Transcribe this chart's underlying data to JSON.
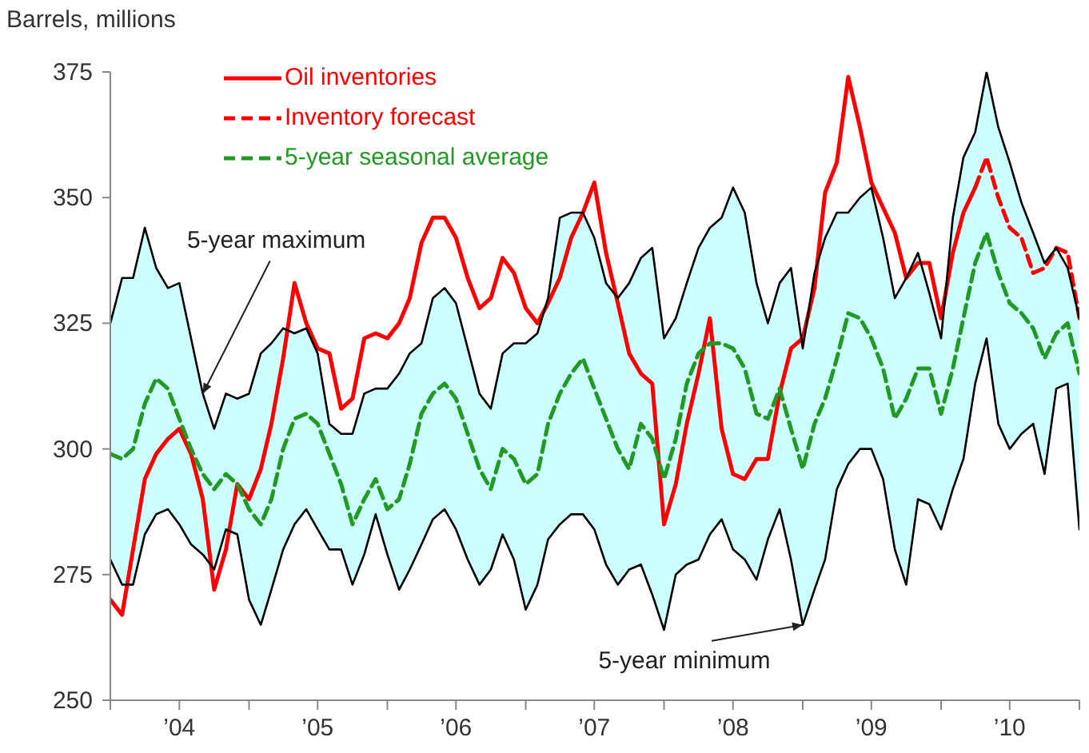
{
  "chart_data": {
    "type": "line",
    "ylabel": "Barrels, millions",
    "marker": "none",
    "legend": "top left",
    "xlim": [
      "2004-01",
      "2011-01"
    ],
    "xticks": [
      {
        "value": "2004-01",
        "label": null
      },
      {
        "value": "2004-07",
        "label": "’04"
      },
      {
        "value": "2005-01",
        "label": null
      },
      {
        "value": "2005-07",
        "label": "’05"
      },
      {
        "value": "2006-01",
        "label": null
      },
      {
        "value": "2006-07",
        "label": "’06"
      },
      {
        "value": "2007-01",
        "label": null
      },
      {
        "value": "2007-07",
        "label": "’07"
      },
      {
        "value": "2008-01",
        "label": null
      },
      {
        "value": "2008-07",
        "label": "’08"
      },
      {
        "value": "2009-01",
        "label": null
      },
      {
        "value": "2009-07",
        "label": "’09"
      },
      {
        "value": "2010-01",
        "label": null
      },
      {
        "value": "2010-07",
        "label": "’10"
      },
      {
        "value": "2011-01",
        "label": null
      }
    ],
    "ylim": [
      250,
      375
    ],
    "yticks": [
      250,
      275,
      300,
      325,
      350,
      375
    ],
    "annotations": [
      {
        "text": "5-year maximum",
        "x": "2004-09",
        "y": 311
      },
      {
        "text": "5-year minimum",
        "x": "2009-01",
        "y": 265
      }
    ],
    "x": [
      "2004-01",
      "2004-02",
      "2004-03",
      "2004-04",
      "2004-05",
      "2004-06",
      "2004-07",
      "2004-08",
      "2004-09",
      "2004-10",
      "2004-11",
      "2004-12",
      "2005-01",
      "2005-02",
      "2005-03",
      "2005-04",
      "2005-05",
      "2005-06",
      "2005-07",
      "2005-08",
      "2005-09",
      "2005-10",
      "2005-11",
      "2005-12",
      "2006-01",
      "2006-02",
      "2006-03",
      "2006-04",
      "2006-05",
      "2006-06",
      "2006-07",
      "2006-08",
      "2006-09",
      "2006-10",
      "2006-11",
      "2006-12",
      "2007-01",
      "2007-02",
      "2007-03",
      "2007-04",
      "2007-05",
      "2007-06",
      "2007-07",
      "2007-08",
      "2007-09",
      "2007-10",
      "2007-11",
      "2007-12",
      "2008-01",
      "2008-02",
      "2008-03",
      "2008-04",
      "2008-05",
      "2008-06",
      "2008-07",
      "2008-08",
      "2008-09",
      "2008-10",
      "2008-11",
      "2008-12",
      "2009-01",
      "2009-02",
      "2009-03",
      "2009-04",
      "2009-05",
      "2009-06",
      "2009-07",
      "2009-08",
      "2009-09",
      "2009-10",
      "2009-11",
      "2009-12",
      "2010-01",
      "2010-02",
      "2010-03",
      "2010-04",
      "2010-05",
      "2010-06",
      "2010-07",
      "2010-08",
      "2010-09",
      "2010-10",
      "2010-11",
      "2010-12",
      "2011-01"
    ],
    "series": [
      {
        "name": "Oil inventories",
        "color": "#ff0000",
        "line_style": "solid",
        "x": [
          "2004-01",
          "2004-02",
          "2004-03",
          "2004-04",
          "2004-05",
          "2004-06",
          "2004-07",
          "2004-08",
          "2004-09",
          "2004-10",
          "2004-11",
          "2004-12",
          "2005-01",
          "2005-02",
          "2005-03",
          "2005-04",
          "2005-05",
          "2005-06",
          "2005-07",
          "2005-08",
          "2005-09",
          "2005-10",
          "2005-11",
          "2005-12",
          "2006-01",
          "2006-02",
          "2006-03",
          "2006-04",
          "2006-05",
          "2006-06",
          "2006-07",
          "2006-08",
          "2006-09",
          "2006-10",
          "2006-11",
          "2006-12",
          "2007-01",
          "2007-02",
          "2007-03",
          "2007-04",
          "2007-05",
          "2007-06",
          "2007-07",
          "2007-08",
          "2007-09",
          "2007-10",
          "2007-11",
          "2007-12",
          "2008-01",
          "2008-02",
          "2008-03",
          "2008-04",
          "2008-05",
          "2008-06",
          "2008-07",
          "2008-08",
          "2008-09",
          "2008-10",
          "2008-11",
          "2008-12",
          "2009-01",
          "2009-02",
          "2009-03",
          "2009-04",
          "2009-05",
          "2009-06",
          "2009-07",
          "2009-08",
          "2009-09",
          "2009-10",
          "2009-11",
          "2009-12",
          "2010-01",
          "2010-02",
          "2010-03",
          "2010-04"
        ],
        "values": [
          270,
          267,
          280,
          294,
          299,
          302,
          304,
          299,
          290,
          272,
          280,
          293,
          290,
          296,
          305,
          318,
          333,
          325,
          320,
          319,
          308,
          310,
          322,
          323,
          322,
          325,
          330,
          341,
          346,
          346,
          342,
          334,
          328,
          330,
          338,
          335,
          328,
          325,
          329,
          334,
          342,
          347,
          353,
          339,
          329,
          319,
          315,
          313,
          285,
          293,
          305,
          315,
          326,
          304,
          295,
          294,
          298,
          298,
          311,
          320,
          322,
          332,
          351,
          357,
          374,
          364,
          353,
          348,
          343,
          334,
          337,
          337,
          326,
          339,
          347,
          352
        ]
      },
      {
        "name": "Inventory forecast",
        "color": "#ff0000",
        "line_style": "dashed",
        "x": [
          "2010-04",
          "2010-05",
          "2010-06",
          "2010-07",
          "2010-08",
          "2010-09",
          "2010-10",
          "2010-11",
          "2010-12",
          "2011-01"
        ],
        "values": [
          352,
          358,
          350,
          344,
          342,
          335,
          336,
          340,
          339,
          326
        ]
      },
      {
        "name": "5-year seasonal average",
        "color": "#229922",
        "line_style": "dashed",
        "values": [
          299,
          298,
          300,
          309,
          314,
          312,
          306,
          300,
          295,
          292,
          295,
          293,
          288,
          285,
          290,
          300,
          306,
          307,
          305,
          299,
          293,
          285,
          290,
          294,
          288,
          290,
          297,
          307,
          311,
          313,
          310,
          303,
          296,
          292,
          300,
          298,
          293,
          295,
          305,
          311,
          315,
          318,
          312,
          306,
          300,
          296,
          305,
          302,
          294,
          302,
          313,
          319,
          321,
          321,
          320,
          316,
          307,
          306,
          312,
          304,
          296,
          305,
          310,
          318,
          327,
          326,
          322,
          316,
          306,
          310,
          316,
          316,
          307,
          316,
          326,
          337,
          343,
          335,
          329,
          327,
          324,
          318,
          323,
          325,
          315
        ],
        "upper": [
          325,
          334,
          334,
          344,
          336,
          332,
          333,
          322,
          311,
          304,
          311,
          310,
          311,
          319,
          321,
          324,
          323,
          324,
          319,
          305,
          303,
          303,
          311,
          312,
          312,
          315,
          319,
          321,
          330,
          332,
          329,
          320,
          311,
          308,
          319,
          321,
          321,
          323,
          330,
          346,
          347,
          347,
          342,
          333,
          330,
          333,
          338,
          340,
          322,
          326,
          333,
          340,
          344,
          346,
          352,
          347,
          333,
          325,
          333,
          336,
          320,
          335,
          342,
          347,
          347,
          350,
          352,
          342,
          330,
          334,
          339,
          331,
          322,
          346,
          358,
          363,
          375,
          364,
          357,
          349,
          343,
          337,
          340,
          336,
          326
        ],
        "lower": [
          278,
          273,
          273,
          283,
          287,
          288,
          285,
          281,
          279,
          276,
          284,
          283,
          270,
          265,
          272,
          280,
          285,
          288,
          284,
          280,
          280,
          273,
          279,
          287,
          279,
          272,
          276,
          281,
          286,
          288,
          284,
          278,
          273,
          276,
          283,
          278,
          268,
          273,
          282,
          285,
          287,
          287,
          284,
          277,
          273,
          276,
          277,
          271,
          264,
          275,
          277,
          278,
          283,
          286,
          280,
          278,
          274,
          282,
          288,
          278,
          265,
          272,
          278,
          292,
          297,
          300,
          300,
          294,
          280,
          273,
          290,
          289,
          284,
          292,
          298,
          313,
          322,
          305,
          300,
          303,
          305,
          295,
          312,
          313,
          284
        ]
      },
      {
        "color": "#000000",
        "line_style": "solid",
        "values": [
          325,
          334,
          334,
          344,
          336,
          332,
          333,
          322,
          311,
          304,
          311,
          310,
          311,
          319,
          321,
          324,
          323,
          324,
          319,
          305,
          303,
          303,
          311,
          312,
          312,
          315,
          319,
          321,
          330,
          332,
          329,
          320,
          311,
          308,
          319,
          321,
          321,
          323,
          330,
          346,
          347,
          347,
          342,
          333,
          330,
          333,
          338,
          340,
          322,
          326,
          333,
          340,
          344,
          346,
          352,
          347,
          333,
          325,
          333,
          336,
          320,
          335,
          342,
          347,
          347,
          350,
          352,
          342,
          330,
          334,
          339,
          331,
          322,
          346,
          358,
          363,
          375,
          364,
          357,
          349,
          343,
          337,
          340,
          336,
          326
        ]
      },
      {
        "color": "#000000",
        "line_style": "solid",
        "values": [
          278,
          273,
          273,
          283,
          287,
          288,
          285,
          281,
          279,
          276,
          284,
          283,
          270,
          265,
          272,
          280,
          285,
          288,
          284,
          280,
          280,
          273,
          279,
          287,
          279,
          272,
          276,
          281,
          286,
          288,
          284,
          278,
          273,
          276,
          283,
          278,
          268,
          273,
          282,
          285,
          287,
          287,
          284,
          277,
          273,
          276,
          277,
          271,
          264,
          275,
          277,
          278,
          283,
          286,
          280,
          278,
          274,
          282,
          288,
          278,
          265,
          272,
          278,
          292,
          297,
          300,
          300,
          294,
          280,
          273,
          290,
          289,
          284,
          292,
          298,
          313,
          322,
          305,
          300,
          303,
          305,
          295,
          312,
          313,
          284
        ]
      }
    ]
  }
}
